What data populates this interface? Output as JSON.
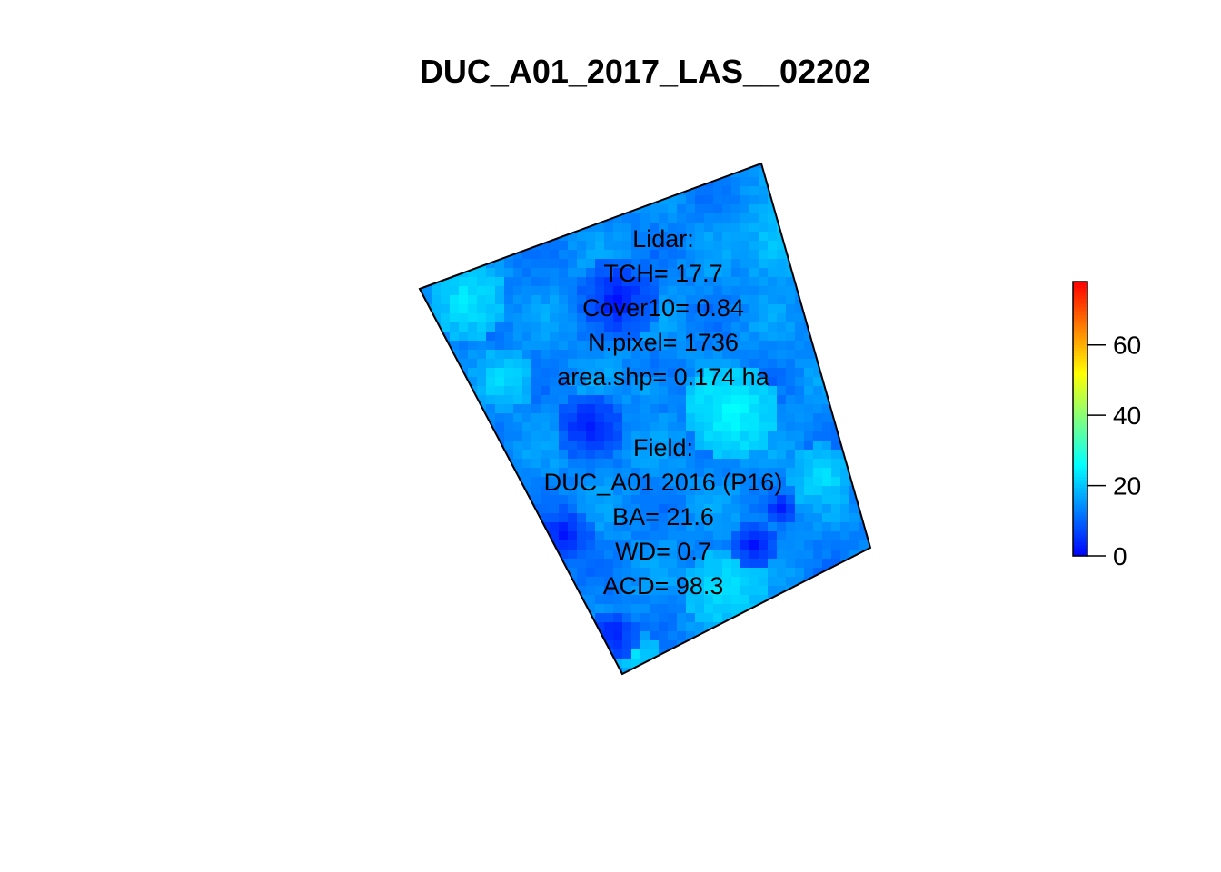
{
  "chart_data": {
    "type": "heatmap",
    "title": "DUC_A01_2017_LAS__02202",
    "description_values": {
      "lidar": [
        "Lidar:",
        "TCH= 17.7",
        "Cover10= 0.84",
        "N.pixel= 1736",
        "area.shp= 0.174 ha"
      ],
      "field": [
        "Field:",
        "DUC_A01 2016 (P16)",
        "BA= 21.6",
        "WD= 0.7",
        "ACD= 98.3"
      ]
    },
    "colorbar": {
      "min": 0,
      "max": 78,
      "ticks": [
        0,
        20,
        40,
        60
      ],
      "tick_labels": [
        "0",
        "20",
        "40",
        "60"
      ],
      "colors": [
        "#0000ff",
        "#0080ff",
        "#00ffff",
        "#80ff80",
        "#ffff00",
        "#ff8000",
        "#ff0000"
      ]
    },
    "plot_polygon_corners": [
      "top-left",
      "top-right",
      "bottom-right",
      "bottom-left"
    ],
    "raster_value_range": [
      0,
      30
    ]
  }
}
